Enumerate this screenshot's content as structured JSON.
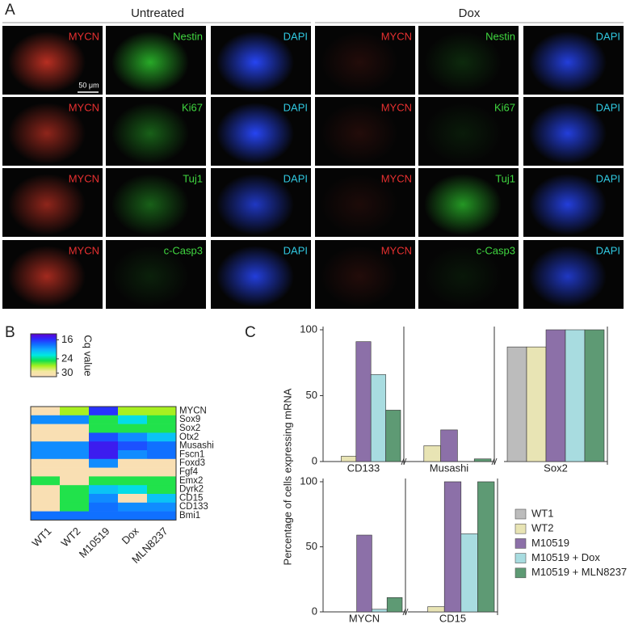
{
  "panel_a": {
    "letter": "A",
    "headers": [
      "Untreated",
      "Dox"
    ],
    "scale_bar": "50 μm",
    "rows": [
      [
        "MYCN",
        "Nestin",
        "DAPI",
        "MYCN",
        "Nestin",
        "DAPI"
      ],
      [
        "MYCN",
        "Ki67",
        "DAPI",
        "MYCN",
        "Ki67",
        "DAPI"
      ],
      [
        "MYCN",
        "Tuj1",
        "DAPI",
        "MYCN",
        "Tuj1",
        "DAPI"
      ],
      [
        "MYCN",
        "c-Casp3",
        "DAPI",
        "MYCN",
        "c-Casp3",
        "DAPI"
      ]
    ]
  },
  "chart_data": [
    {
      "type": "heatmap",
      "letter": "B",
      "colorbar_label": "Cq value",
      "clim": [
        13.5,
        31.5
      ],
      "cticks": [
        16,
        24,
        30
      ],
      "colors": [
        "#6000d0",
        "#2a2aff",
        "#1070ff",
        "#10b0ff",
        "#00e8e0",
        "#10e050",
        "#a8f020",
        "#f4e8a0",
        "#fbdcb8"
      ],
      "rows": [
        "MYCN",
        "Sox9",
        "Sox2",
        "Otx2",
        "Musashi",
        "Fscn1",
        "Foxd3",
        "Fgf4",
        "Emx2",
        "Dyrk2",
        "CD15",
        "CD133",
        "Bmi1"
      ],
      "columns": [
        "WT1",
        "WT2",
        "M10519",
        "Dox",
        "MLN8237"
      ],
      "values": [
        [
          31,
          27,
          16,
          27,
          27
        ],
        [
          19,
          19,
          25,
          22,
          25
        ],
        [
          31,
          31,
          25,
          25,
          25
        ],
        [
          31,
          31,
          17,
          19,
          21
        ],
        [
          19,
          19,
          15,
          17,
          18
        ],
        [
          19,
          19,
          15,
          19,
          18
        ],
        [
          31,
          31,
          19,
          31,
          31
        ],
        [
          31,
          31,
          31,
          31,
          31
        ],
        [
          25,
          31,
          25,
          25,
          25
        ],
        [
          31,
          25,
          21,
          22,
          25
        ],
        [
          31,
          25,
          19,
          31,
          21
        ],
        [
          31,
          25,
          18,
          19,
          19
        ],
        [
          18,
          18,
          18,
          18,
          18
        ]
      ]
    },
    {
      "type": "bar",
      "letter": "C",
      "ylabel": "Percentage of cells expressing mRNA",
      "ylim": [
        0,
        100
      ],
      "yticks": [
        0,
        50,
        100
      ],
      "categories": [
        "CD133",
        "Musashi",
        "Sox2",
        "MYCN",
        "CD15"
      ],
      "series": [
        {
          "name": "WT1",
          "color": "#bcbcbc",
          "values": [
            0,
            0,
            87,
            0,
            0
          ]
        },
        {
          "name": "WT2",
          "color": "#e8e4b4",
          "values": [
            4,
            12,
            87,
            0,
            4
          ]
        },
        {
          "name": "M10519",
          "color": "#8c70a8",
          "values": [
            91,
            24,
            100,
            59,
            100
          ]
        },
        {
          "name": "M10519 + Dox",
          "color": "#a8dce0",
          "values": [
            66,
            0,
            100,
            2,
            60
          ]
        },
        {
          "name": "M10519 + MLN8237",
          "color": "#5e9a74",
          "values": [
            39,
            2,
            100,
            11,
            100
          ]
        }
      ]
    }
  ]
}
